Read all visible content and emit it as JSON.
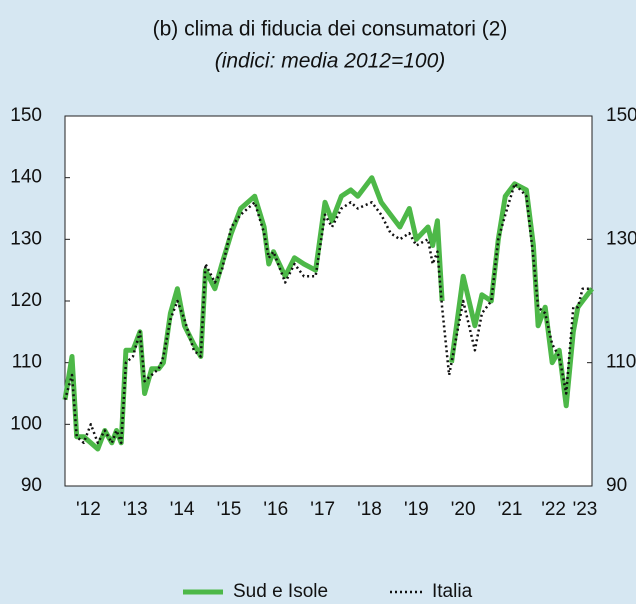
{
  "chart_data": {
    "type": "line",
    "title": "(b) clima di fiducia dei consumatori (2)",
    "subtitle": "(indici: media 2012=100)",
    "x": [
      2012.0,
      2012.15,
      2012.25,
      2012.4,
      2012.55,
      2012.7,
      2012.85,
      2013.0,
      2013.1,
      2013.2,
      2013.3,
      2013.45,
      2013.6,
      2013.7,
      2013.85,
      2014.0,
      2014.1,
      2014.25,
      2014.4,
      2014.55,
      2014.75,
      2014.9,
      2015.0,
      2015.2,
      2015.35,
      2015.55,
      2015.75,
      2016.05,
      2016.25,
      2016.35,
      2016.45,
      2016.7,
      2016.9,
      2017.1,
      2017.35,
      2017.55,
      2017.7,
      2017.9,
      2018.1,
      2018.25,
      2018.55,
      2018.75,
      2018.95,
      2019.15,
      2019.35,
      2019.5,
      2019.75,
      2019.85,
      2019.95,
      2020.05,
      2020.2,
      2020.25,
      2020.5,
      2020.75,
      2020.9,
      2021.1,
      2021.25,
      2021.4,
      2021.6,
      2021.85,
      2022.0,
      2022.1,
      2022.25,
      2022.4,
      2022.55,
      2022.7,
      2022.85,
      2022.95,
      2023.05,
      2023.25
    ],
    "series": [
      {
        "name": "Sud e Isole",
        "color": "#4db848",
        "style": "solid",
        "values": [
          104,
          111,
          98,
          98,
          97,
          96,
          99,
          97,
          99,
          97,
          112,
          112,
          115,
          105,
          109,
          109,
          110,
          118,
          122,
          116,
          113,
          111,
          125,
          122,
          126,
          131,
          135,
          137,
          132,
          126,
          128,
          124,
          127,
          126,
          125,
          136,
          133,
          137,
          138,
          137,
          140,
          136,
          134,
          132,
          135,
          130,
          132,
          129,
          133,
          120,
          null,
          110,
          124,
          116,
          121,
          120,
          130,
          137,
          139,
          138,
          129,
          116,
          119,
          110,
          112,
          103,
          115,
          119,
          120,
          122
        ]
      },
      {
        "name": "Italia",
        "color": "#111111",
        "style": "dotted",
        "values": [
          104,
          108,
          98,
          97,
          100,
          97,
          99,
          97,
          99,
          97,
          110,
          111,
          115,
          107,
          108,
          109,
          111,
          117,
          120,
          117,
          112,
          111,
          126,
          123,
          125,
          132,
          134,
          136,
          131,
          127,
          128,
          123,
          126,
          124,
          124,
          134,
          132,
          135,
          136,
          135,
          136,
          134,
          131,
          130,
          131,
          129,
          130,
          126,
          128,
          119,
          108,
          110,
          120,
          112,
          118,
          120,
          130,
          134,
          139,
          137,
          127,
          119,
          118,
          113,
          111,
          105,
          119,
          119,
          122,
          122
        ]
      }
    ],
    "xlim": [
      2012,
      2023.25
    ],
    "xticks": [
      {
        "value": 2012.5,
        "label": "'12"
      },
      {
        "value": 2013.5,
        "label": "'13"
      },
      {
        "value": 2014.5,
        "label": "'14"
      },
      {
        "value": 2015.5,
        "label": "'15"
      },
      {
        "value": 2016.5,
        "label": "'16"
      },
      {
        "value": 2017.5,
        "label": "'17"
      },
      {
        "value": 2018.5,
        "label": "'18"
      },
      {
        "value": 2019.5,
        "label": "'19"
      },
      {
        "value": 2020.5,
        "label": "'20"
      },
      {
        "value": 2021.5,
        "label": "'21"
      },
      {
        "value": 2022.43,
        "label": "'22"
      },
      {
        "value": 2023.1,
        "label": "'23"
      }
    ],
    "ylim": [
      90,
      150
    ],
    "yticks": [
      90,
      100,
      110,
      120,
      130,
      140,
      150
    ],
    "y2lim": [
      90,
      150
    ],
    "y2ticks": [
      90,
      110,
      130,
      150
    ],
    "grid": false,
    "legend": "bottom"
  }
}
